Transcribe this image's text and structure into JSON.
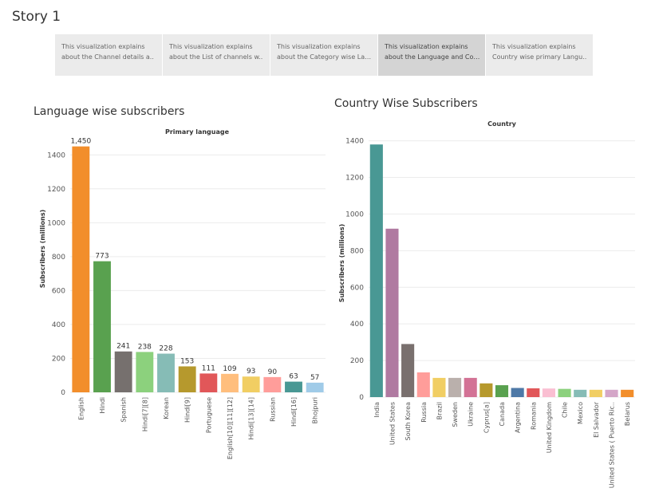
{
  "story": {
    "title": "Story 1"
  },
  "tabs": [
    {
      "line1": "This visualization explains",
      "line2": "about the Channel details a..",
      "active": false
    },
    {
      "line1": "This visualization explains",
      "line2": "about the List of channels w..",
      "active": false
    },
    {
      "line1": "This visualization explains",
      "line2": "about the Category wise Lan..",
      "active": false
    },
    {
      "line1": "This visualization explains",
      "line2": "about the Language and Cou..",
      "active": true
    },
    {
      "line1": "This visualization explains",
      "line2": "Country wise primary Langu..",
      "active": false
    }
  ],
  "chart_data": [
    {
      "type": "bar",
      "title": "Language wise subscribers",
      "subtitle": "Primary language",
      "xlabel": "",
      "ylabel": "Subscribers (millions)",
      "ylim": [
        0,
        1500
      ],
      "yticks": [
        0,
        200,
        400,
        600,
        800,
        1000,
        1200,
        1400
      ],
      "grid": true,
      "show_data_labels": true,
      "categories": [
        "English",
        "Hindi",
        "Spanish",
        "Hindi[7][8]",
        "Korean",
        "Hindi[9]",
        "Portuguese",
        "English[10][11][12]",
        "Hindi[13][14]",
        "Russian",
        "Hindi[16]",
        "Bhojpuri"
      ],
      "values": [
        1450,
        773,
        241,
        238,
        228,
        153,
        111,
        109,
        93,
        90,
        63,
        57
      ],
      "value_labels": [
        "1,450",
        "773",
        "241",
        "238",
        "228",
        "153",
        "111",
        "109",
        "93",
        "90",
        "63",
        "57"
      ],
      "colors": [
        "#f28e2b",
        "#59a14f",
        "#76706e",
        "#8cd17d",
        "#86bcb6",
        "#b6992d",
        "#e15759",
        "#ffbe7d",
        "#f1ce63",
        "#ff9d9a",
        "#499894",
        "#a0cbe8"
      ]
    },
    {
      "type": "bar",
      "title": "Country Wise Subscribers",
      "subtitle": "Country",
      "xlabel": "",
      "ylabel": "Subscribers (millions)",
      "ylim": [
        0,
        1420
      ],
      "yticks": [
        0,
        200,
        400,
        600,
        800,
        1000,
        1200,
        1400
      ],
      "grid": true,
      "show_data_labels": false,
      "categories": [
        "India",
        "United States",
        "South Korea",
        "Russia",
        "Brazil",
        "Sweden",
        "Ukraine",
        "Cyprus[a]",
        "Canada",
        "Argentina",
        "Romania",
        "United Kingdom",
        "Chile",
        "Mexico",
        "El Salvador",
        "United States ( Puerto Ric..",
        "Belarus"
      ],
      "values": [
        1380,
        920,
        290,
        135,
        105,
        105,
        105,
        75,
        65,
        50,
        48,
        47,
        45,
        40,
        40,
        40,
        40
      ],
      "colors": [
        "#499894",
        "#b07aa1",
        "#79706e",
        "#ff9d9a",
        "#f1ce63",
        "#bab0ac",
        "#d37295",
        "#b6992d",
        "#59a14f",
        "#4e79a7",
        "#e15759",
        "#fabfd2",
        "#8cd17d",
        "#86bcb6",
        "#f1ce63",
        "#d4a6c8",
        "#f28e2b"
      ]
    }
  ]
}
